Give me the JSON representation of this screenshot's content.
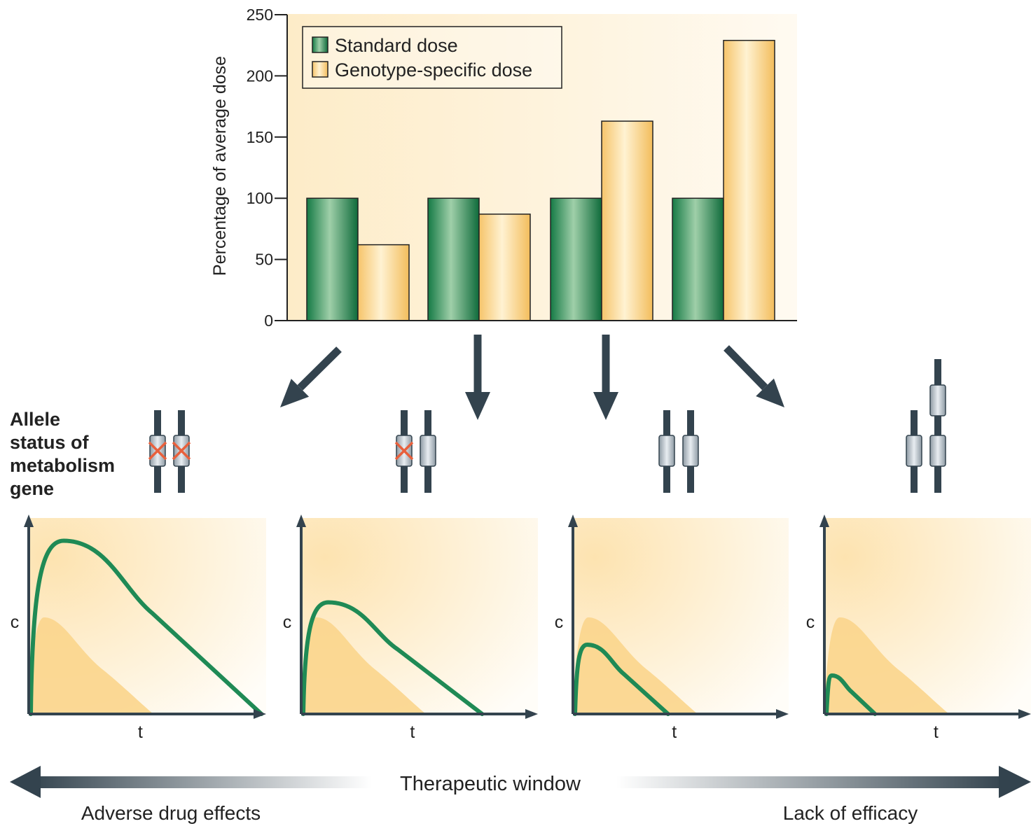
{
  "chart_data": {
    "type": "bar",
    "ylabel": "Percentage of average dose",
    "ylim": [
      0,
      250
    ],
    "yticks": [
      0,
      50,
      100,
      150,
      200,
      250
    ],
    "groups": 4,
    "series": [
      {
        "name": "Standard dose",
        "values": [
          100,
          100,
          100,
          100
        ],
        "color": "#1f8a55"
      },
      {
        "name": "Genotype-specific dose",
        "values": [
          62,
          87,
          163,
          229
        ],
        "color": "#fbd58c"
      }
    ],
    "legend_position": "top-left"
  },
  "allele_label": [
    "Allele",
    "status of",
    "metabolism",
    "gene"
  ],
  "allele_panels": [
    {
      "alleles": [
        {
          "copies": 1,
          "nonfunctional": true
        },
        {
          "copies": 1,
          "nonfunctional": true
        }
      ]
    },
    {
      "alleles": [
        {
          "copies": 1,
          "nonfunctional": true
        },
        {
          "copies": 1,
          "nonfunctional": false
        }
      ]
    },
    {
      "alleles": [
        {
          "copies": 1,
          "nonfunctional": false
        },
        {
          "copies": 1,
          "nonfunctional": false
        }
      ]
    },
    {
      "alleles": [
        {
          "copies": 1,
          "nonfunctional": false
        },
        {
          "copies": 2,
          "nonfunctional": false
        }
      ]
    }
  ],
  "pk_plots": {
    "ylabel": "c",
    "xlabel": "t",
    "curve_peaks": [
      0.9,
      0.58,
      0.36,
      0.2
    ],
    "curve_ends": [
      1.0,
      0.78,
      0.45,
      0.25
    ]
  },
  "bottom_axis": {
    "center_label": "Therapeutic window",
    "left_label": "Adverse drug effects",
    "right_label": "Lack of efficacy"
  },
  "colors": {
    "green": "#1f8a55",
    "yellow": "#fbd58c",
    "dark": "#33434e",
    "cross": "#e8603c",
    "background": "#fdf0d8"
  }
}
